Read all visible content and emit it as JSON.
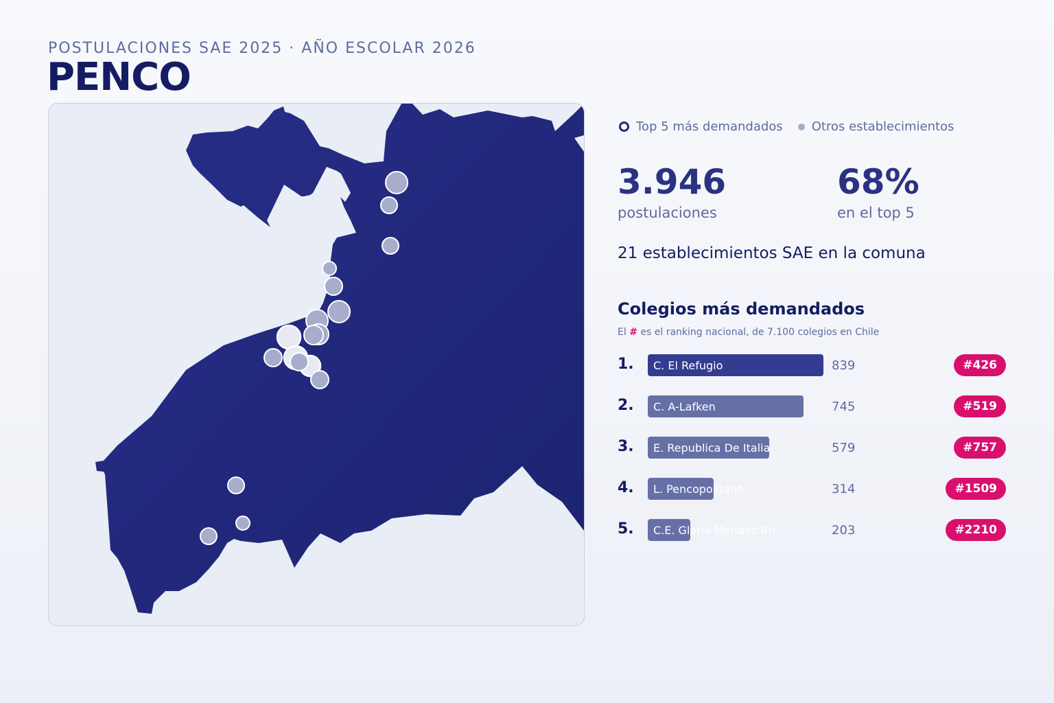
{
  "header": {
    "subtitle": "POSTULACIONES SAE 2025 · AÑO ESCOLAR 2026",
    "title": "PENCO"
  },
  "map": {
    "land_color": "#232a80",
    "sea_color": "#e9edf5",
    "schools": [
      {
        "name": "",
        "top5": false
      },
      {
        "name": "",
        "top5": false
      },
      {
        "name": "",
        "top5": false
      },
      {
        "name": "",
        "top5": false
      },
      {
        "name": "",
        "top5": false
      },
      {
        "name": "",
        "top5": false
      },
      {
        "name": "",
        "top5": false
      },
      {
        "name": "",
        "top5": false
      },
      {
        "name": "",
        "top5": false
      },
      {
        "name": "",
        "top5": true
      },
      {
        "name": "",
        "top5": false
      },
      {
        "name": "",
        "top5": true
      },
      {
        "name": "",
        "top5": true
      },
      {
        "name": "",
        "top5": false
      },
      {
        "name": "",
        "top5": false
      },
      {
        "name": "",
        "top5": false
      },
      {
        "name": "",
        "top5": false
      },
      {
        "name": "",
        "top5": false
      }
    ]
  },
  "legend": {
    "top5_label": "Top 5 más demandados",
    "others_label": "Otros establecimientos"
  },
  "stats": {
    "applications_value": "3.946",
    "applications_label": "postulaciones",
    "top5_share_value": "68%",
    "top5_share_label": "en el top 5",
    "establishments_text": "21 establecimientos SAE en la comuna"
  },
  "ranking": {
    "title": "Colegios más demandados",
    "note_prefix": "El",
    "note_hash": "#",
    "note_suffix": "es el ranking nacional, de 7.100 colegios en Chile",
    "rows": [
      {
        "rank": "1.",
        "name": "C. El Refugio",
        "count": 839,
        "national": "#426"
      },
      {
        "rank": "2.",
        "name": "C. A-Lafken",
        "count": 745,
        "national": "#519"
      },
      {
        "rank": "3.",
        "name": "E. Republica De Italia",
        "count": 579,
        "national": "#757"
      },
      {
        "rank": "4.",
        "name": "L. Pencopolitano",
        "count": 314,
        "national": "#1509"
      },
      {
        "rank": "5.",
        "name": "C.E. Gloria Mendez Bri",
        "count": 203,
        "national": "#2210"
      }
    ]
  }
}
